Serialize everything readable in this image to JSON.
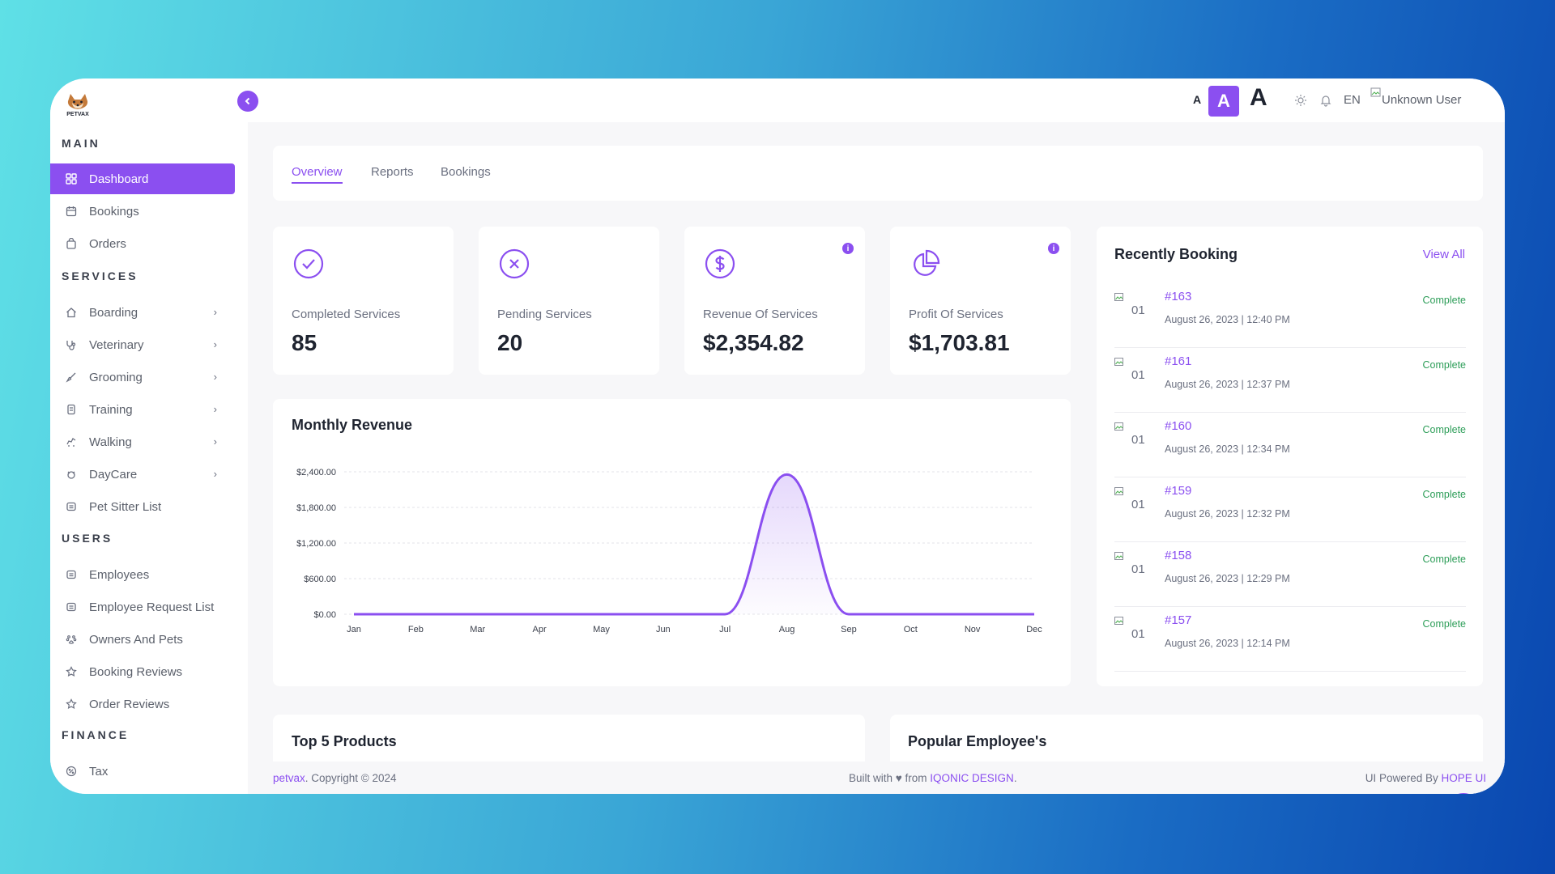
{
  "brand": {
    "logo_text": "PETVAX"
  },
  "sidebar": {
    "sections": {
      "main": "MAIN",
      "services": "SERVICES",
      "users": "USERS",
      "finance": "FINANCE"
    },
    "items": [
      {
        "label": "Dashboard",
        "icon": "grid-icon",
        "active": true
      },
      {
        "label": "Bookings",
        "icon": "calendar-icon"
      },
      {
        "label": "Orders",
        "icon": "bag-icon"
      },
      {
        "label": "Boarding",
        "icon": "home-icon",
        "has_submenu": true
      },
      {
        "label": "Veterinary",
        "icon": "stethoscope-icon",
        "has_submenu": true
      },
      {
        "label": "Grooming",
        "icon": "brush-icon",
        "has_submenu": true
      },
      {
        "label": "Training",
        "icon": "training-icon",
        "has_submenu": true
      },
      {
        "label": "Walking",
        "icon": "walking-icon",
        "has_submenu": true
      },
      {
        "label": "DayCare",
        "icon": "daycare-icon",
        "has_submenu": true
      },
      {
        "label": "Pet Sitter List",
        "icon": "list-icon"
      },
      {
        "label": "Employees",
        "icon": "users-icon"
      },
      {
        "label": "Employee Request List",
        "icon": "users-icon"
      },
      {
        "label": "Owners And Pets",
        "icon": "paw-icon"
      },
      {
        "label": "Booking Reviews",
        "icon": "star-icon"
      },
      {
        "label": "Order Reviews",
        "icon": "star-icon"
      },
      {
        "label": "Tax",
        "icon": "percent-icon"
      }
    ]
  },
  "header": {
    "font_sizes": [
      "A",
      "A",
      "A"
    ],
    "language": "EN",
    "user": "Unknown User"
  },
  "tabs": [
    "Overview",
    "Reports",
    "Bookings"
  ],
  "stats": [
    {
      "label": "Completed Services",
      "value": "85",
      "icon": "check-circle-icon"
    },
    {
      "label": "Pending Services",
      "value": "20",
      "icon": "x-circle-icon"
    },
    {
      "label": "Revenue Of Services",
      "value": "$2,354.82",
      "icon": "dollar-circle-icon",
      "info": "i"
    },
    {
      "label": "Profit Of Services",
      "value": "$1,703.81",
      "icon": "pie-chart-icon",
      "info": "i"
    }
  ],
  "revenue": {
    "title": "Monthly Revenue"
  },
  "chart_data": {
    "type": "area",
    "title": "Monthly Revenue",
    "categories": [
      "Jan",
      "Feb",
      "Mar",
      "Apr",
      "May",
      "Jun",
      "Jul",
      "Aug",
      "Sep",
      "Oct",
      "Nov",
      "Dec"
    ],
    "values": [
      0,
      0,
      0,
      0,
      0,
      0,
      0,
      2354.82,
      0,
      0,
      0,
      0
    ],
    "y_ticks": [
      "$2,400.00",
      "$1,800.00",
      "$1,200.00",
      "$600.00",
      "$0.00"
    ],
    "ylim": [
      0,
      2400
    ],
    "grid": true,
    "color": "#8b4ff0"
  },
  "recent": {
    "title": "Recently Booking",
    "view_all": "View All",
    "items": [
      {
        "img_alt": "01",
        "id": "#163",
        "date": "August 26, 2023 | 12:40 PM",
        "status": "Complete"
      },
      {
        "img_alt": "01",
        "id": "#161",
        "date": "August 26, 2023 | 12:37 PM",
        "status": "Complete"
      },
      {
        "img_alt": "01",
        "id": "#160",
        "date": "August 26, 2023 | 12:34 PM",
        "status": "Complete"
      },
      {
        "img_alt": "01",
        "id": "#159",
        "date": "August 26, 2023 | 12:32 PM",
        "status": "Complete"
      },
      {
        "img_alt": "01",
        "id": "#158",
        "date": "August 26, 2023 | 12:29 PM",
        "status": "Complete"
      },
      {
        "img_alt": "01",
        "id": "#157",
        "date": "August 26, 2023 | 12:14 PM",
        "status": "Complete"
      }
    ]
  },
  "products": {
    "title": "Top 5 Products"
  },
  "employees": {
    "title": "Popular Employee's"
  },
  "footer": {
    "left_link": "petvax",
    "left_text": ". Copyright © 2024",
    "mid_text": "Built with ♥ from ",
    "mid_link": "IQONIC DESIGN",
    "mid_end": ".",
    "right_text": "UI Powered By ",
    "right_link": "HOPE UI"
  },
  "colors": {
    "accent": "#8b4ff0",
    "success": "#2e9e59"
  }
}
